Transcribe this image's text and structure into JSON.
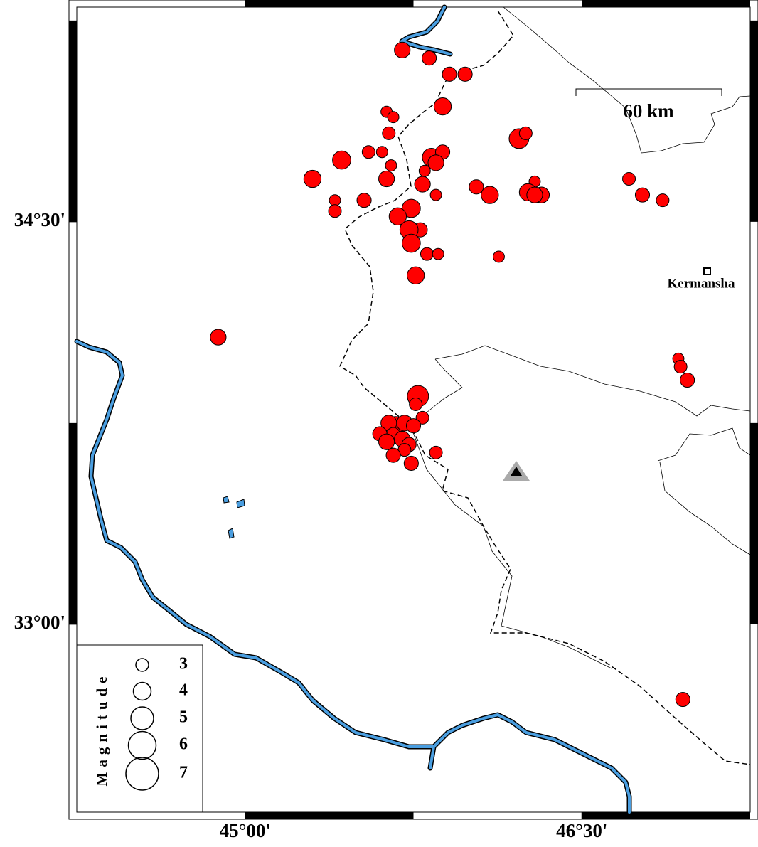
{
  "chart_data": {
    "type": "scatter",
    "xlim": [
      44.25,
      47.25
    ],
    "ylim": [
      32.3,
      35.3
    ],
    "xticks": [
      {
        "value": 45,
        "label": "45°00'"
      },
      {
        "value": 46.5,
        "label": "46°30'"
      }
    ],
    "yticks": [
      {
        "value": 33,
        "label": "33°00'"
      },
      {
        "value": 34.5,
        "label": "34°30'"
      }
    ],
    "color": "#ff0000",
    "x": [
      45.7,
      45.82,
      45.91,
      45.98,
      45.88,
      45.63,
      45.66,
      45.64,
      46.22,
      46.25,
      45.55,
      45.61,
      45.43,
      45.83,
      45.88,
      45.85,
      45.65,
      45.3,
      45.8,
      45.63,
      45.79,
      46.03,
      46.09,
      46.29,
      46.26,
      46.32,
      46.29,
      45.85,
      46.71,
      46.77,
      46.86,
      45.4,
      45.4,
      45.53,
      45.74,
      45.68,
      45.78,
      45.73,
      45.74,
      45.81,
      45.86,
      46.13,
      45.76,
      44.88,
      46.93,
      46.94,
      46.97,
      45.77,
      45.76,
      45.67,
      45.64,
      45.71,
      45.79,
      45.75,
      45.6,
      45.66,
      45.63,
      45.7,
      45.73,
      45.71,
      45.66,
      45.74,
      45.85,
      46.95
    ],
    "values": [
      35.14,
      35.11,
      35.05,
      35.05,
      34.93,
      34.91,
      34.89,
      34.83,
      34.81,
      34.83,
      34.76,
      34.76,
      34.73,
      34.74,
      34.76,
      34.72,
      34.71,
      34.66,
      34.69,
      34.66,
      34.64,
      34.63,
      34.6,
      34.65,
      34.61,
      34.6,
      34.6,
      34.6,
      34.66,
      34.6,
      34.58,
      34.58,
      34.54,
      34.58,
      34.55,
      34.52,
      34.47,
      34.47,
      34.42,
      34.38,
      34.38,
      34.37,
      34.3,
      34.07,
      33.99,
      33.96,
      33.91,
      33.85,
      33.82,
      33.74,
      33.75,
      33.75,
      33.77,
      33.74,
      33.71,
      33.71,
      33.68,
      33.69,
      33.67,
      33.65,
      33.63,
      33.6,
      33.64,
      32.72
    ],
    "magnitudes": [
      3.6,
      3.3,
      3.3,
      3.3,
      3.9,
      2.7,
      2.7,
      3.0,
      4.4,
      3.0,
      3.0,
      2.7,
      4.1,
      4.1,
      3.3,
      3.6,
      2.7,
      3.9,
      2.7,
      3.6,
      3.6,
      3.3,
      3.9,
      2.7,
      3.9,
      3.6,
      3.6,
      2.7,
      3.0,
      3.3,
      3.0,
      2.7,
      3.0,
      3.3,
      4.1,
      3.9,
      3.3,
      4.1,
      4.1,
      3.0,
      2.7,
      2.7,
      3.9,
      3.6,
      2.7,
      3.0,
      3.3,
      4.7,
      3.0,
      4.1,
      3.6,
      3.6,
      3.0,
      3.3,
      3.3,
      3.0,
      3.6,
      3.6,
      3.3,
      3.0,
      3.3,
      3.3,
      3.0,
      3.3
    ],
    "legend": {
      "title": "Magnitude",
      "sizes": [
        3,
        4,
        5,
        6,
        7
      ]
    },
    "annotations": {
      "scale": "60 km",
      "city": "Kermansha"
    }
  }
}
